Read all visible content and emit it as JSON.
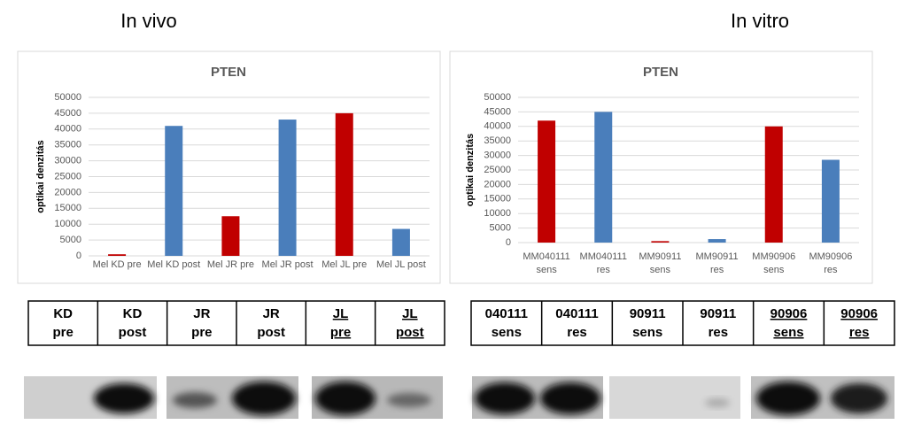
{
  "headings": [
    "In vivo",
    "In vitro"
  ],
  "chart_data": [
    {
      "type": "bar",
      "title": "PTEN",
      "y_label": "optikai denzitás",
      "categories": [
        "Mel KD pre",
        "Mel KD post",
        "Mel JR pre",
        "Mel JR post",
        "Mel JL pre",
        "Mel JL post"
      ],
      "values": [
        500,
        41000,
        12500,
        43000,
        45000,
        8500
      ],
      "colors": [
        "#c00000",
        "#4a7ebb",
        "#c00000",
        "#4a7ebb",
        "#c00000",
        "#4a7ebb"
      ],
      "ylim": [
        0,
        50000
      ],
      "yticks": [
        0,
        5000,
        10000,
        15000,
        20000,
        25000,
        30000,
        35000,
        40000,
        45000,
        50000
      ],
      "grid": true
    },
    {
      "type": "bar",
      "title": "PTEN",
      "y_label": "optikai denzitás",
      "categories": [
        "MM040111 sens",
        "MM040111 res",
        "MM90911 sens",
        "MM90911 res",
        "MM90906 sens",
        "MM90906 res"
      ],
      "values": [
        42000,
        45000,
        500,
        1200,
        40000,
        28500
      ],
      "colors": [
        "#c00000",
        "#4a7ebb",
        "#c00000",
        "#4a7ebb",
        "#c00000",
        "#4a7ebb"
      ],
      "ylim": [
        0,
        50000
      ],
      "yticks": [
        0,
        5000,
        10000,
        15000,
        20000,
        25000,
        30000,
        35000,
        40000,
        45000,
        50000
      ],
      "grid": true
    }
  ],
  "tables": [
    {
      "cells": [
        [
          "KD",
          "pre"
        ],
        [
          "KD",
          "post"
        ],
        [
          "JR",
          "pre"
        ],
        [
          "JR",
          "post"
        ],
        [
          "JL",
          "pre"
        ],
        [
          "JL",
          "post"
        ]
      ],
      "underlined": [
        false,
        false,
        false,
        false,
        true,
        true
      ]
    },
    {
      "cells": [
        [
          "040111",
          "sens"
        ],
        [
          "040111",
          "res"
        ],
        [
          "90911",
          "sens"
        ],
        [
          "90911",
          "res"
        ],
        [
          "90906",
          "sens"
        ],
        [
          "90906",
          "res"
        ]
      ],
      "underlined": [
        false,
        false,
        false,
        false,
        true,
        true
      ]
    }
  ]
}
